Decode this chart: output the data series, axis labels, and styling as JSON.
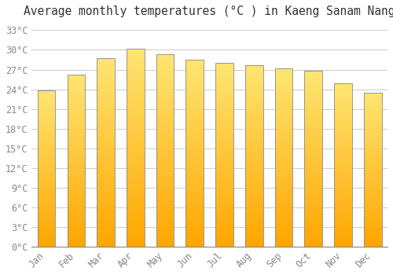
{
  "title": "Average monthly temperatures (°C ) in Kaeng Sanam Nang",
  "months": [
    "Jan",
    "Feb",
    "Mar",
    "Apr",
    "May",
    "Jun",
    "Jul",
    "Aug",
    "Sep",
    "Oct",
    "Nov",
    "Dec"
  ],
  "values": [
    23.8,
    26.2,
    28.7,
    30.2,
    29.3,
    28.5,
    28.0,
    27.7,
    27.2,
    26.8,
    24.9,
    23.5
  ],
  "bar_color_top": "#FFD97A",
  "bar_color_bottom": "#FFA500",
  "bar_edge_color": "#888888",
  "background_color": "#ffffff",
  "grid_color": "#cccccc",
  "ytick_labels": [
    "0°C",
    "3°C",
    "6°C",
    "9°C",
    "12°C",
    "15°C",
    "18°C",
    "21°C",
    "24°C",
    "27°C",
    "30°C",
    "33°C"
  ],
  "ytick_values": [
    0,
    3,
    6,
    9,
    12,
    15,
    18,
    21,
    24,
    27,
    30,
    33
  ],
  "ylim": [
    0,
    34
  ],
  "title_fontsize": 10.5,
  "tick_fontsize": 8.5,
  "font_family": "monospace",
  "bar_width": 0.6
}
